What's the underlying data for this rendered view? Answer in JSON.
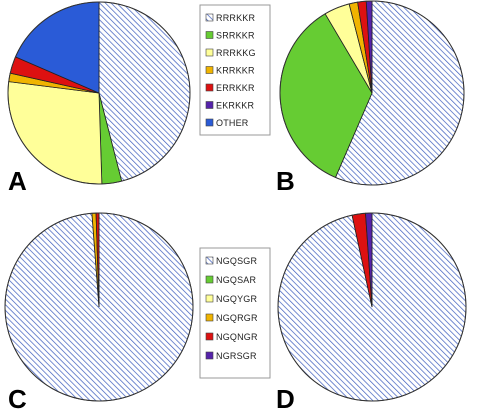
{
  "patterns": {
    "hatch_color": "#3b5bbd",
    "hatch_bg": "#ffffff"
  },
  "legends": {
    "top": {
      "entries": [
        {
          "label": "RRRKKR",
          "color": "hatch"
        },
        {
          "label": "SRRKKR",
          "color": "#66cc33"
        },
        {
          "label": "RRRKKG",
          "color": "#ffff99"
        },
        {
          "label": "KRRKKR",
          "color": "#f0b400"
        },
        {
          "label": "ERRKKR",
          "color": "#dd1111"
        },
        {
          "label": "EKRKKR",
          "color": "#5522aa"
        },
        {
          "label": "OTHER",
          "color": "#2a5bd7"
        }
      ]
    },
    "bottom": {
      "entries": [
        {
          "label": "NGQSGR",
          "color": "hatch"
        },
        {
          "label": "NGQSAR",
          "color": "#66cc33"
        },
        {
          "label": "NGQYGR",
          "color": "#ffff99"
        },
        {
          "label": "NGQRGR",
          "color": "#f0b400"
        },
        {
          "label": "NGQNGR",
          "color": "#dd1111"
        },
        {
          "label": "NGRSGR",
          "color": "#5522aa"
        }
      ]
    }
  },
  "chart_data": [
    {
      "type": "pie",
      "panel": "A",
      "start_angle_deg": 0,
      "direction": "clockwise",
      "slices": [
        {
          "label": "RRRKKR",
          "value": 46.0,
          "color": "hatch"
        },
        {
          "label": "SRRKKR",
          "value": 3.5,
          "color": "#66cc33"
        },
        {
          "label": "RRRKKG",
          "value": 27.5,
          "color": "#ffff99"
        },
        {
          "label": "KRRKKR",
          "value": 1.5,
          "color": "#f0b400"
        },
        {
          "label": "ERRKKR",
          "value": 3.0,
          "color": "#dd1111"
        },
        {
          "label": "OTHER",
          "value": 18.5,
          "color": "#2a5bd7"
        }
      ]
    },
    {
      "type": "pie",
      "panel": "B",
      "start_angle_deg": 0,
      "direction": "clockwise",
      "slices": [
        {
          "label": "RRRKKR",
          "value": 56.5,
          "color": "hatch"
        },
        {
          "label": "SRRKKR",
          "value": 35.0,
          "color": "#66cc33"
        },
        {
          "label": "RRRKKG",
          "value": 4.5,
          "color": "#ffff99"
        },
        {
          "label": "KRRKKR",
          "value": 1.5,
          "color": "#f0b400"
        },
        {
          "label": "ERRKKR",
          "value": 1.5,
          "color": "#dd1111"
        },
        {
          "label": "EKRKKR",
          "value": 1.0,
          "color": "#5522aa"
        }
      ]
    },
    {
      "type": "pie",
      "panel": "C",
      "start_angle_deg": 0,
      "direction": "clockwise",
      "slices": [
        {
          "label": "NGQSGR",
          "value": 98.8,
          "color": "hatch"
        },
        {
          "label": "NGQRGR",
          "value": 0.7,
          "color": "#f0b400"
        },
        {
          "label": "NGQNGR",
          "value": 0.5,
          "color": "#dd1111"
        }
      ]
    },
    {
      "type": "pie",
      "panel": "D",
      "start_angle_deg": 0,
      "direction": "clockwise",
      "slices": [
        {
          "label": "NGQSGR",
          "value": 96.6,
          "color": "hatch"
        },
        {
          "label": "NGQNGR",
          "value": 2.3,
          "color": "#dd1111"
        },
        {
          "label": "NGRSGR",
          "value": 1.1,
          "color": "#5522aa"
        }
      ]
    }
  ]
}
